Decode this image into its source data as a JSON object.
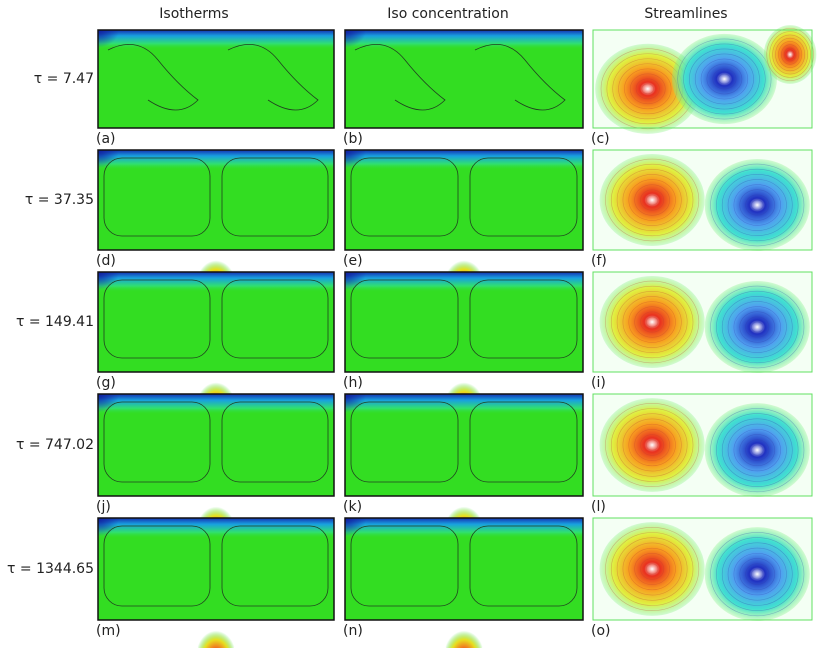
{
  "header": {
    "columns": [
      "Isotherms",
      "Iso concentration",
      "Streamlines"
    ]
  },
  "rows": [
    {
      "label": "τ = 7.47",
      "panels": [
        "(a)",
        "(b)",
        "(c)"
      ]
    },
    {
      "label": "τ = 37.35",
      "panels": [
        "(d)",
        "(e)",
        "(f)"
      ]
    },
    {
      "label": "τ = 149.41",
      "panels": [
        "(g)",
        "(h)",
        "(i)"
      ]
    },
    {
      "label": "τ = 747.02",
      "panels": [
        "(j)",
        "(k)",
        "(l)"
      ]
    },
    {
      "label": "τ = 1344.65",
      "panels": [
        "(m)",
        "(n)",
        "(o)"
      ]
    }
  ]
}
